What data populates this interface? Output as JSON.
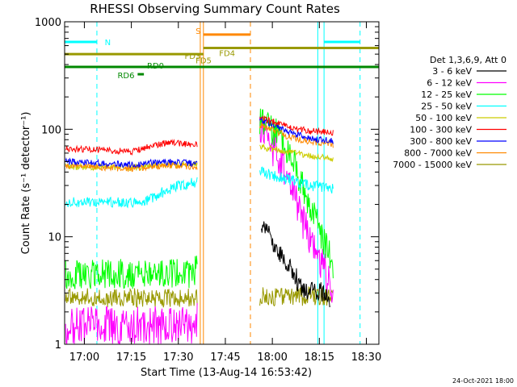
{
  "chart_data": {
    "type": "line",
    "title": "RHESSI Observing Summary Count Rates",
    "xlabel": "Start Time (13-Aug-14 16:53:42)",
    "ylabel": "Count Rate (s⁻¹ detector⁻¹)",
    "xlim": [
      "16:53:42",
      "18:34:00"
    ],
    "ylim": [
      1,
      1000
    ],
    "yscale": "log",
    "x_ticks": [
      "17:00",
      "17:15",
      "17:30",
      "17:45",
      "18:00",
      "18:15",
      "18:30"
    ],
    "y_ticks": [
      "1",
      "10",
      "100",
      "1000"
    ],
    "legend_title": "Det 1,3,6,9, Att 0",
    "legend_position": "right",
    "series": [
      {
        "name": "3 - 6 keV",
        "color": "#000000",
        "x": [
          "17:56:30",
          "17:58:00",
          "18:00:00",
          "18:03:00",
          "18:06:00",
          "18:09:00",
          "18:12:00",
          "18:16:00",
          "18:18:30"
        ],
        "values": [
          14,
          12,
          9,
          6.5,
          5,
          3.5,
          3,
          3,
          2.8
        ]
      },
      {
        "name": "6 - 12 keV",
        "color": "#ff00ff",
        "x": [
          "16:54:00",
          "17:20:00",
          "17:35:00",
          "17:56:30",
          "18:02:00",
          "18:06:00",
          "18:10:00",
          "18:14:00",
          "18:18:00",
          "18:19:30"
        ],
        "values": [
          1.5,
          1.5,
          1.5,
          100,
          55,
          28,
          13,
          7,
          4,
          3
        ]
      },
      {
        "name": "12 - 25 keV",
        "color": "#00ff00",
        "x": [
          "16:54:00",
          "17:20:00",
          "17:35:00",
          "17:56:30",
          "18:02:00",
          "18:06:00",
          "18:10:00",
          "18:14:00",
          "18:18:00",
          "18:19:30"
        ],
        "values": [
          4.5,
          4.5,
          4.5,
          118,
          88,
          55,
          28,
          14,
          7,
          5
        ]
      },
      {
        "name": "25 - 50 keV",
        "color": "#00ffff",
        "x": [
          "16:54:00",
          "17:15:00",
          "17:20:00",
          "17:25:00",
          "17:30:00",
          "17:36:00",
          "17:56:30",
          "18:05:00",
          "18:12:00",
          "18:19:30"
        ],
        "values": [
          21,
          21,
          22,
          26,
          30,
          32,
          40,
          34,
          30,
          28
        ]
      },
      {
        "name": "50 - 100 keV",
        "color": "#cccc00",
        "x": [
          "16:54:00",
          "17:15:00",
          "17:36:00",
          "17:56:30",
          "18:05:00",
          "18:12:00",
          "18:19:30"
        ],
        "values": [
          45,
          44,
          48,
          68,
          62,
          56,
          53
        ]
      },
      {
        "name": "100 - 300 keV",
        "color": "#ff0000",
        "x": [
          "16:54:00",
          "17:10:00",
          "17:15:00",
          "17:20:00",
          "17:25:00",
          "17:30:00",
          "17:36:00",
          "17:56:30",
          "18:00:00",
          "18:05:00",
          "18:12:00",
          "18:19:30"
        ],
        "values": [
          66,
          63,
          62,
          68,
          74,
          74,
          72,
          125,
          118,
          105,
          96,
          94
        ]
      },
      {
        "name": "300 - 800 keV",
        "color": "#0000ff",
        "x": [
          "16:54:00",
          "17:15:00",
          "17:25:00",
          "17:36:00",
          "17:56:30",
          "18:00:00",
          "18:05:00",
          "18:12:00",
          "18:19:30"
        ],
        "values": [
          50,
          47,
          50,
          48,
          122,
          110,
          95,
          82,
          78
        ]
      },
      {
        "name": "800 - 7000 keV",
        "color": "#ff8800",
        "x": [
          "16:54:00",
          "17:15:00",
          "17:25:00",
          "17:36:00",
          "17:56:30",
          "18:00:00",
          "18:05:00",
          "18:12:00",
          "18:19:30"
        ],
        "values": [
          46,
          43,
          46,
          45,
          110,
          100,
          85,
          76,
          72
        ]
      },
      {
        "name": "7000 - 15000 keV",
        "color": "#999900",
        "x": [
          "16:54:00",
          "17:20:00",
          "17:35:00",
          "17:56:30",
          "18:05:00",
          "18:12:00",
          "18:19:30"
        ],
        "values": [
          2.7,
          2.7,
          2.7,
          2.8,
          2.8,
          2.8,
          2.8
        ]
      }
    ],
    "flags": [
      {
        "label": "N",
        "color": "#00ffff",
        "segments": [
          [
            "16:53:42",
            "17:04:00"
          ],
          [
            "18:16:30",
            "18:28:00"
          ]
        ],
        "level": 650
      },
      {
        "label": "S",
        "color": "#ff8800",
        "segments": [
          [
            "17:38:00",
            "17:53:00"
          ]
        ],
        "level": 760
      },
      {
        "label": "FD3",
        "color": "#999900",
        "segments": [
          [
            "16:53:42",
            "17:38:00"
          ]
        ],
        "level": 500
      },
      {
        "label": "FD4",
        "color": "#999900",
        "segments": [
          [
            "17:38:00",
            "18:34:00"
          ]
        ],
        "level": 570
      },
      {
        "label": "FD5",
        "color": "#999900",
        "segments": [],
        "level": 440
      },
      {
        "label": "RD0",
        "color": "#008800",
        "segments": [
          [
            "16:53:42",
            "18:34:00"
          ]
        ],
        "level": 380
      },
      {
        "label": "RD6",
        "color": "#008800",
        "segments": [
          [
            "17:17:00",
            "17:19:00"
          ]
        ],
        "level": 325
      }
    ],
    "vlines": [
      {
        "time": "17:04:00",
        "color": "#00ffff",
        "style": "dashed"
      },
      {
        "time": "17:37:00",
        "color": "#ff8800",
        "style": "solid"
      },
      {
        "time": "17:38:00",
        "color": "#ff8800",
        "style": "solid"
      },
      {
        "time": "17:53:00",
        "color": "#ff8800",
        "style": "dashed"
      },
      {
        "time": "18:14:30",
        "color": "#00ffff",
        "style": "solid"
      },
      {
        "time": "18:16:30",
        "color": "#00ffff",
        "style": "solid"
      },
      {
        "time": "18:28:00",
        "color": "#00ffff",
        "style": "dashed"
      }
    ],
    "data_gaps": [
      [
        "17:36:00",
        "17:56:00"
      ]
    ],
    "footer": "24-Oct-2021 18:00"
  }
}
